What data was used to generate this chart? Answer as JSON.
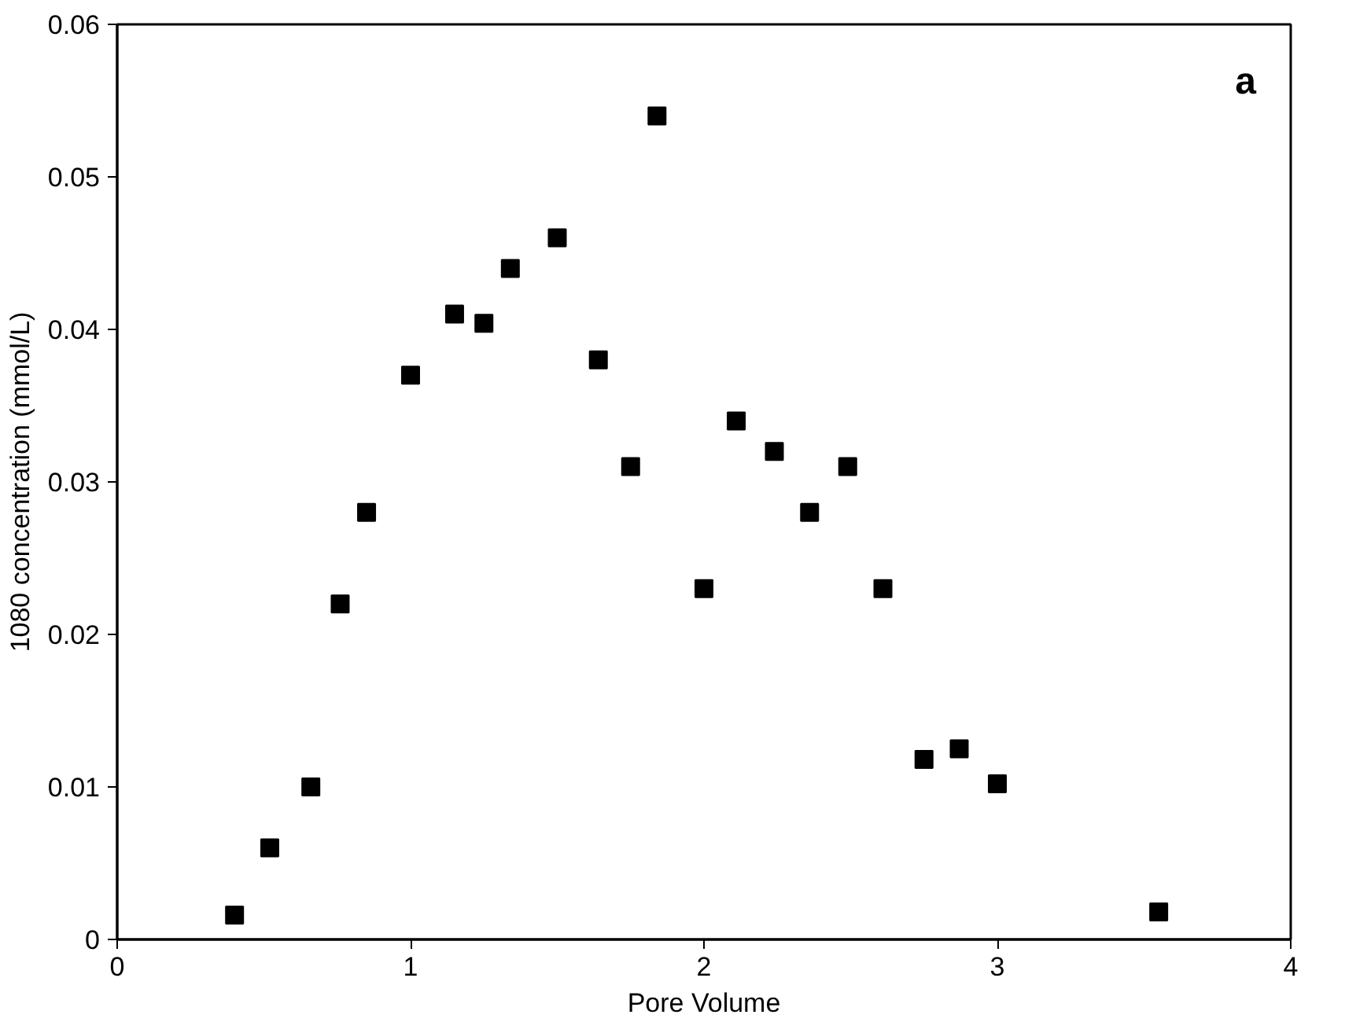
{
  "chart_data": {
    "type": "scatter",
    "xlabel": "Pore Volume",
    "ylabel": "1080 concentration (mmol/L)",
    "annotations": [
      "a"
    ],
    "x": [
      0.4,
      0.52,
      0.66,
      0.76,
      0.85,
      1.0,
      1.15,
      1.25,
      1.34,
      1.5,
      1.64,
      1.75,
      1.84,
      2.0,
      2.11,
      2.24,
      2.36,
      2.49,
      2.61,
      2.75,
      2.87,
      3.0,
      3.55
    ],
    "series": [
      {
        "color": "#000000",
        "values": [
          0.0016,
          0.006,
          0.01,
          0.022,
          0.028,
          0.037,
          0.041,
          0.0404,
          0.044,
          0.046,
          0.038,
          0.031,
          0.054,
          0.023,
          0.034,
          0.032,
          0.028,
          0.031,
          0.023,
          0.0118,
          0.0125,
          0.0102,
          0.0018
        ]
      }
    ],
    "xlim": [
      0,
      4
    ],
    "ylim": [
      0,
      0.06
    ],
    "xticks": [
      0,
      1,
      2,
      3,
      4
    ],
    "yticks": [
      0,
      0.01,
      0.02,
      0.03,
      0.04,
      0.05,
      0.06
    ],
    "marker": "square",
    "grid": false
  }
}
